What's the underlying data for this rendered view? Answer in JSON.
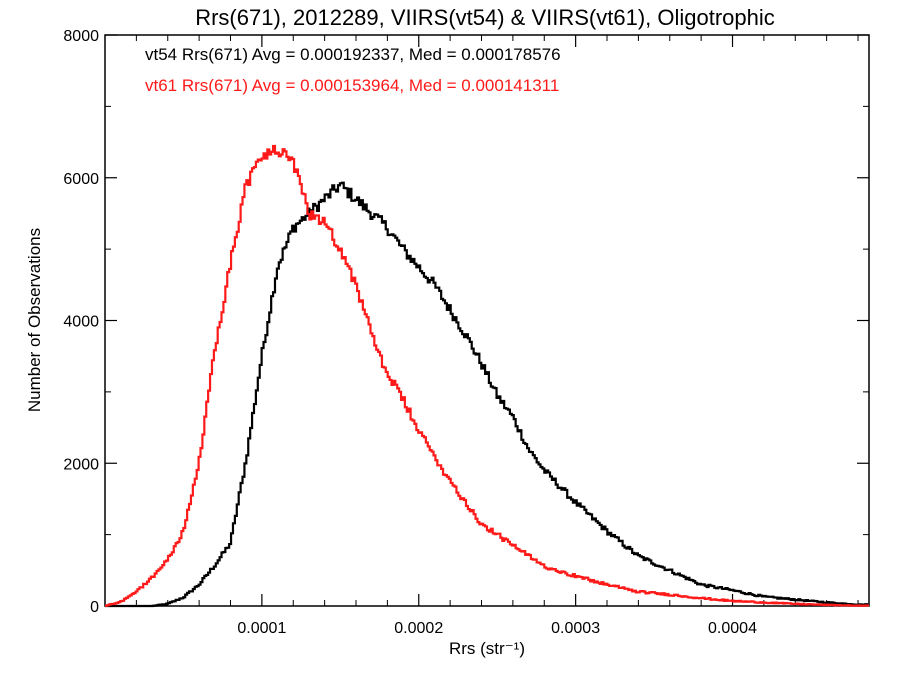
{
  "chart_data": {
    "type": "line",
    "title": "Rrs(671), 2012289, VIIRS(vt54) & VIIRS(vt61), Oligotrophic",
    "xlabel": "Rrs (str⁻¹)",
    "ylabel": "Number of Observations",
    "xlim": [
      0.0,
      0.000487
    ],
    "ylim": [
      0,
      8000
    ],
    "xticks": [
      {
        "value": 0.0001,
        "label": "0.0001"
      },
      {
        "value": 0.0002,
        "label": "0.0002"
      },
      {
        "value": 0.0003,
        "label": "0.0003"
      },
      {
        "value": 0.0004,
        "label": "0.0004"
      }
    ],
    "yticks": [
      {
        "value": 0,
        "label": "0"
      },
      {
        "value": 2000,
        "label": "2000"
      },
      {
        "value": 4000,
        "label": "4000"
      },
      {
        "value": 6000,
        "label": "6000"
      },
      {
        "value": 8000,
        "label": "8000"
      }
    ],
    "grid": false,
    "legend_position": "top-left",
    "annotations": [
      {
        "text": "vt54 Rrs(671) Avg = 0.000192337, Med = 0.000178576",
        "color": "#000000"
      },
      {
        "text": "vt61 Rrs(671) Avg = 0.000153964, Med = 0.000141311",
        "color": "#ff1a1a"
      }
    ],
    "series": [
      {
        "name": "vt54",
        "color": "#000000",
        "step": true,
        "x": [
          3e-05,
          4e-05,
          5e-05,
          6e-05,
          7e-05,
          8e-05,
          9e-05,
          0.0001,
          0.00011,
          0.00012,
          0.00013,
          0.00014,
          0.00015,
          0.00016,
          0.00017,
          0.00018,
          0.00019,
          0.0002,
          0.00021,
          0.00022,
          0.00023,
          0.00024,
          0.00025,
          0.00026,
          0.00027,
          0.00028,
          0.0003,
          0.00032,
          0.00034,
          0.00036,
          0.00038,
          0.0004,
          0.00042,
          0.00044,
          0.00046,
          0.00048
        ],
        "y": [
          0,
          30,
          120,
          300,
          570,
          880,
          2050,
          3500,
          4750,
          5300,
          5500,
          5700,
          5900,
          5700,
          5500,
          5300,
          5000,
          4750,
          4500,
          4150,
          3800,
          3400,
          2950,
          2650,
          2200,
          1900,
          1450,
          1050,
          700,
          500,
          300,
          220,
          130,
          90,
          50,
          20
        ]
      },
      {
        "name": "vt61",
        "color": "#ff1a1a",
        "step": true,
        "x": [
          0.0,
          1e-05,
          2e-05,
          3e-05,
          4e-05,
          5e-05,
          6e-05,
          7e-05,
          8e-05,
          9e-05,
          0.0001,
          0.00011,
          0.00012,
          0.00013,
          0.00014,
          0.00015,
          0.00016,
          0.00017,
          0.00018,
          0.00019,
          0.0002,
          0.00021,
          0.00022,
          0.00023,
          0.00024,
          0.00025,
          0.00026,
          0.00027,
          0.00028,
          0.0003,
          0.00032,
          0.00034,
          0.00036,
          0.00038,
          0.0004,
          0.00042,
          0.00044,
          0.00046,
          0.00048
        ],
        "y": [
          0,
          60,
          200,
          400,
          650,
          1050,
          2000,
          3600,
          4800,
          5900,
          6300,
          6400,
          6200,
          5500,
          5400,
          5000,
          4500,
          3800,
          3250,
          2900,
          2450,
          2100,
          1750,
          1450,
          1150,
          1000,
          850,
          700,
          560,
          420,
          300,
          200,
          160,
          110,
          70,
          50,
          30,
          15,
          5
        ]
      }
    ]
  }
}
